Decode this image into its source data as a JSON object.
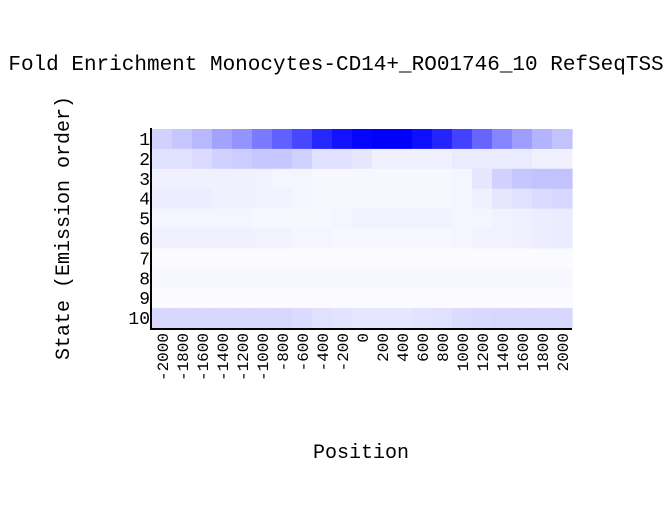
{
  "chart_data": {
    "type": "heatmap",
    "title": "Fold Enrichment Monocytes-CD14+_RO01746_10 RefSeqTSS",
    "xlabel": "Position",
    "ylabel": "State (Emission order)",
    "x_categories": [
      "-2000",
      "-1800",
      "-1600",
      "-1400",
      "-1200",
      "-1000",
      "-800",
      "-600",
      "-400",
      "-200",
      "0",
      "200",
      "400",
      "600",
      "800",
      "1000",
      "1200",
      "1400",
      "1600",
      "1800",
      "2000"
    ],
    "y_categories": [
      "1",
      "2",
      "3",
      "4",
      "5",
      "6",
      "7",
      "8",
      "9",
      "10"
    ],
    "color_min": "#ffffff",
    "color_max": "#0000ff",
    "values": [
      [
        0.18,
        0.22,
        0.28,
        0.36,
        0.42,
        0.52,
        0.62,
        0.72,
        0.85,
        0.93,
        0.98,
        1.0,
        1.0,
        0.94,
        0.86,
        0.74,
        0.6,
        0.48,
        0.38,
        0.3,
        0.24
      ],
      [
        0.12,
        0.12,
        0.14,
        0.18,
        0.2,
        0.22,
        0.22,
        0.18,
        0.12,
        0.12,
        0.1,
        0.06,
        0.06,
        0.06,
        0.06,
        0.08,
        0.08,
        0.08,
        0.08,
        0.06,
        0.06
      ],
      [
        0.06,
        0.06,
        0.06,
        0.06,
        0.06,
        0.05,
        0.04,
        0.04,
        0.03,
        0.03,
        0.03,
        0.03,
        0.03,
        0.03,
        0.03,
        0.04,
        0.1,
        0.18,
        0.22,
        0.24,
        0.24
      ],
      [
        0.07,
        0.07,
        0.07,
        0.06,
        0.06,
        0.05,
        0.05,
        0.04,
        0.03,
        0.03,
        0.03,
        0.03,
        0.03,
        0.03,
        0.03,
        0.04,
        0.06,
        0.1,
        0.12,
        0.14,
        0.16
      ],
      [
        0.04,
        0.04,
        0.04,
        0.04,
        0.04,
        0.03,
        0.03,
        0.03,
        0.03,
        0.04,
        0.05,
        0.05,
        0.05,
        0.05,
        0.05,
        0.04,
        0.04,
        0.05,
        0.06,
        0.07,
        0.08
      ],
      [
        0.06,
        0.06,
        0.06,
        0.06,
        0.06,
        0.05,
        0.05,
        0.04,
        0.04,
        0.03,
        0.03,
        0.03,
        0.03,
        0.03,
        0.03,
        0.04,
        0.05,
        0.05,
        0.06,
        0.07,
        0.08
      ],
      [
        0.02,
        0.02,
        0.02,
        0.02,
        0.02,
        0.02,
        0.02,
        0.02,
        0.02,
        0.02,
        0.02,
        0.02,
        0.02,
        0.02,
        0.02,
        0.02,
        0.02,
        0.02,
        0.02,
        0.02,
        0.02
      ],
      [
        0.03,
        0.03,
        0.03,
        0.03,
        0.03,
        0.03,
        0.03,
        0.03,
        0.03,
        0.03,
        0.03,
        0.03,
        0.03,
        0.03,
        0.03,
        0.03,
        0.03,
        0.03,
        0.03,
        0.03,
        0.03
      ],
      [
        0.02,
        0.02,
        0.02,
        0.02,
        0.02,
        0.02,
        0.02,
        0.02,
        0.02,
        0.02,
        0.02,
        0.02,
        0.02,
        0.02,
        0.02,
        0.02,
        0.02,
        0.02,
        0.02,
        0.02,
        0.02
      ],
      [
        0.16,
        0.16,
        0.16,
        0.16,
        0.16,
        0.16,
        0.16,
        0.14,
        0.12,
        0.11,
        0.1,
        0.1,
        0.1,
        0.11,
        0.12,
        0.14,
        0.15,
        0.16,
        0.16,
        0.16,
        0.16
      ]
    ]
  }
}
